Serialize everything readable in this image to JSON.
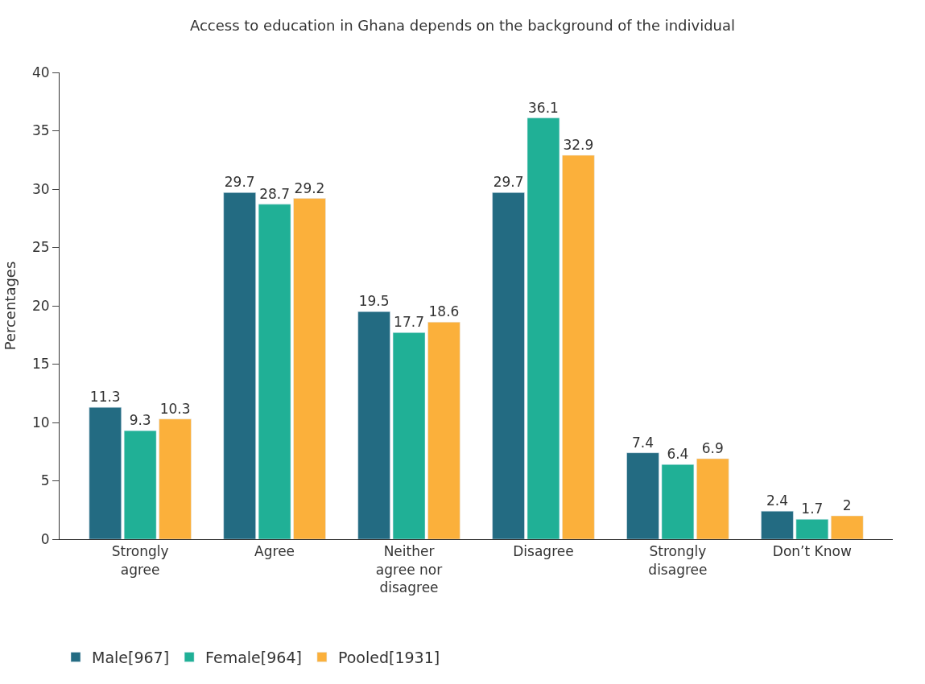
{
  "chart_data": {
    "type": "bar",
    "title": "Access to education in Ghana depends on the background of the individual",
    "ylabel": "Percentages",
    "categories": [
      "Strongly agree",
      "Agree",
      "Neither agree nor disagree",
      "Disagree",
      "Strongly disagree",
      "Don’t Know"
    ],
    "series": [
      {
        "name": "Male[967]",
        "color": "#236b82",
        "values": [
          11.3,
          29.7,
          19.5,
          29.7,
          7.4,
          2.4
        ]
      },
      {
        "name": "Female[964]",
        "color": "#20b096",
        "values": [
          9.3,
          28.7,
          17.7,
          36.1,
          6.4,
          1.7
        ]
      },
      {
        "name": "Pooled[1931]",
        "color": "#fbb03b",
        "values": [
          10.3,
          29.2,
          18.6,
          32.9,
          6.9,
          2
        ]
      }
    ],
    "ylim": [
      0,
      40
    ],
    "yticks": [
      0,
      5,
      10,
      15,
      20,
      25,
      30,
      35,
      40
    ],
    "legend": "bottom left",
    "data_labels": true
  }
}
